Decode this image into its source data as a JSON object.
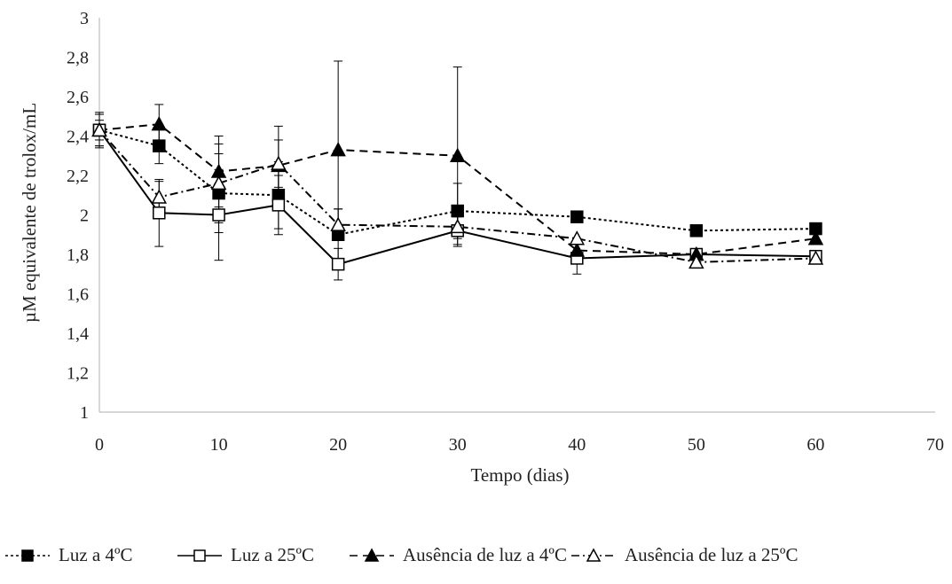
{
  "chart_data": {
    "type": "line",
    "title": "",
    "xlabel": "Tempo (dias)",
    "ylabel": "µM equivalente de trolox/mL",
    "xlim": [
      0,
      70
    ],
    "ylim": [
      1,
      3
    ],
    "xticks": [
      0,
      10,
      20,
      30,
      40,
      50,
      60,
      70
    ],
    "yticks": [
      "1",
      "1,2",
      "1,4",
      "1,6",
      "1,8",
      "2",
      "2,2",
      "2,4",
      "2,6",
      "2,8",
      "3"
    ],
    "grid": false,
    "legend_position": "bottom",
    "series": [
      {
        "name": "Luz a 4ºC",
        "marker": "filled-square",
        "line_style": "dotted",
        "x": [
          0,
          5,
          10,
          15,
          20,
          30,
          40,
          50,
          60
        ],
        "y": [
          2.43,
          2.35,
          2.11,
          2.1,
          1.9,
          2.02,
          1.99,
          1.92,
          1.93
        ],
        "error": [
          0.09,
          0.09,
          0.2,
          0.17,
          0.13,
          0.14,
          0,
          0,
          0
        ]
      },
      {
        "name": "Luz a 25ºC",
        "marker": "open-square",
        "line_style": "solid",
        "x": [
          0,
          5,
          10,
          15,
          20,
          30,
          40,
          50,
          60
        ],
        "y": [
          2.43,
          2.01,
          2.0,
          2.05,
          1.75,
          1.92,
          1.78,
          1.8,
          1.79
        ],
        "error": [
          0.05,
          0.17,
          0.23,
          0.15,
          0.08,
          0.08,
          0.08,
          0,
          0
        ]
      },
      {
        "name": "Ausência de luz a 4ºC",
        "marker": "filled-triangle",
        "line_style": "dashed",
        "x": [
          0,
          5,
          10,
          15,
          20,
          30,
          40,
          50,
          60
        ],
        "y": [
          2.43,
          2.46,
          2.22,
          2.25,
          2.33,
          2.3,
          1.82,
          1.8,
          1.88
        ],
        "error": [
          0.08,
          0.1,
          0.18,
          0.2,
          0.45,
          0.45,
          0,
          0,
          0
        ]
      },
      {
        "name": "Ausência de luz a 25ºC",
        "marker": "open-triangle",
        "line_style": "dash-dot",
        "x": [
          0,
          5,
          10,
          15,
          20,
          30,
          40,
          50,
          60
        ],
        "y": [
          2.43,
          2.09,
          2.16,
          2.26,
          1.95,
          1.94,
          1.88,
          1.76,
          1.78
        ],
        "error": [
          0.08,
          0.08,
          0.2,
          0.12,
          0.08,
          0.05,
          0,
          0,
          0
        ]
      }
    ]
  }
}
